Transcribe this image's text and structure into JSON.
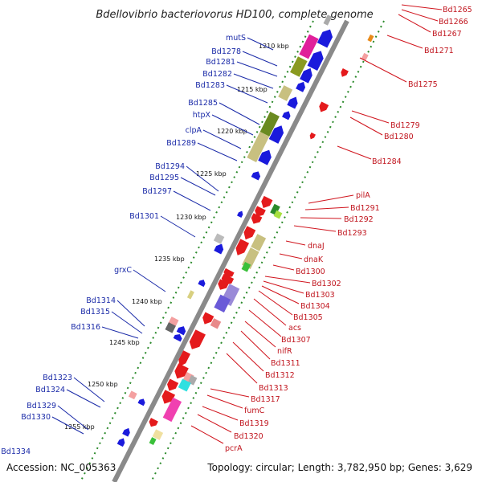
{
  "title": "Bdellovibrio bacteriovorus HD100, complete genome",
  "accession": "Accession: NC_005363",
  "summary": "Topology: circular; Length: 3,782,950 bp; Genes: 3,629",
  "colors": {
    "forward_gene": "#e41a1c",
    "reverse_gene": "#1a1adc",
    "left_label": "#1a2aa8",
    "right_label": "#c0141d",
    "backbone": "#8a8a8a",
    "tick_major": "#1a7a1a",
    "tick_minor": "#2a9a2a"
  },
  "scale_ticks": [
    "1210 kbp",
    "1215 kbp",
    "1220 kbp",
    "1225 kbp",
    "1230 kbp",
    "1235 kbp",
    "1240 kbp",
    "1245 kbp",
    "1250 kbp",
    "1255 kbp"
  ],
  "left_labels": [
    "mutS",
    "Bd1278",
    "Bd1281",
    "Bd1282",
    "Bd1283",
    "Bd1285",
    "htpX",
    "clpA",
    "Bd1289",
    "Bd1294",
    "Bd1295",
    "Bd1297",
    "Bd1301",
    "grxC",
    "Bd1314",
    "Bd1315",
    "Bd1316",
    "Bd1323",
    "Bd1324",
    "Bd1329",
    "Bd1330",
    "Bd1334"
  ],
  "right_labels": [
    "Bd1265",
    "Bd1266",
    "Bd1267",
    "Bd1271",
    "Bd1275",
    "Bd1279",
    "Bd1280",
    "Bd1284",
    "pilA",
    "Bd1291",
    "Bd1292",
    "Bd1293",
    "dnaJ",
    "dnaK",
    "Bd1300",
    "Bd1302",
    "Bd1303",
    "Bd1304",
    "Bd1305",
    "acs",
    "Bd1307",
    "nifR",
    "Bd1311",
    "Bd1312",
    "Bd1313",
    "Bd1317",
    "fumC",
    "Bd1319",
    "Bd1320",
    "pcrA"
  ]
}
